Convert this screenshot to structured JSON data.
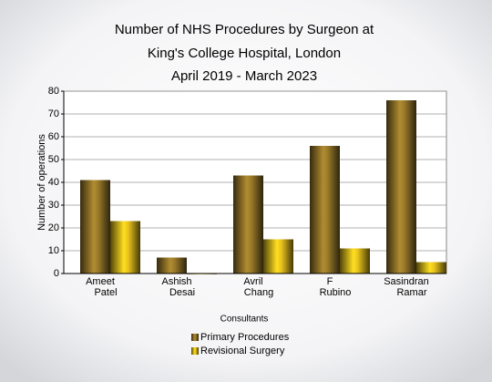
{
  "chart_data": {
    "type": "bar",
    "title": [
      "Number of NHS Procedures by Surgeon at",
      "King's College Hospital, London",
      "April 2019 - March 2023"
    ],
    "x_label": "Consultants",
    "y_label": "Number of operations",
    "categories": [
      [
        "Ameet",
        "Patel"
      ],
      [
        "Ashish",
        "Desai"
      ],
      [
        "Avril",
        "Chang"
      ],
      [
        "F",
        "Rubino"
      ],
      [
        "Sasindran",
        "Ramar"
      ]
    ],
    "series": [
      {
        "name": "Primary Procedures",
        "color": "#9a7a2a",
        "values": [
          41,
          7,
          43,
          56,
          76
        ]
      },
      {
        "name": "Revisional Surgery",
        "color": "#e8c21c",
        "values": [
          23,
          0,
          15,
          11,
          5
        ]
      }
    ],
    "ylim": [
      0,
      80
    ],
    "yticks": [
      0,
      10,
      20,
      30,
      40,
      50,
      60,
      70,
      80
    ],
    "grid": true
  }
}
